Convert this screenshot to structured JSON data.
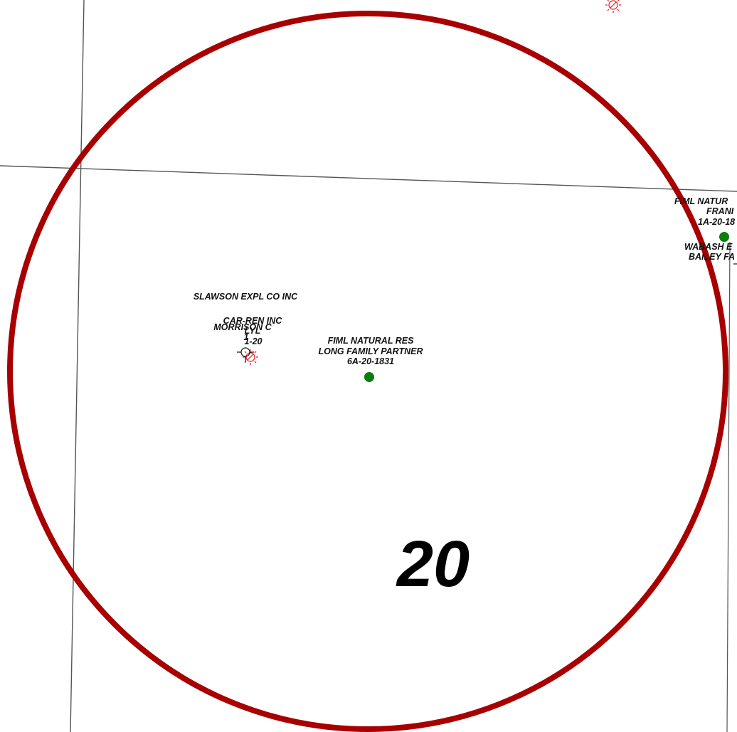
{
  "map": {
    "section_number": "20",
    "colors": {
      "buffer_circle": "#a80000",
      "section_lines": "#555555",
      "producing_well": "#0a7d0a",
      "plugged_well": "#e8141e",
      "well_outline": "#111111",
      "label_text": "#111111"
    },
    "wells": [
      {
        "status_icon": "producing-well-icon",
        "lines": [
          "FIML NATURAL RES",
          "LONG FAMILY PARTNER",
          "6A-20-1831"
        ]
      },
      {
        "status_icon": "plugged-well-icon",
        "lines": [
          "SLAWSON EXPL CO INC",
          "MORRISON  C",
          "1-20"
        ]
      },
      {
        "status_icon": "dry-hole-icon",
        "lines": [
          "CAR-REN INC",
          "LYL",
          "1"
        ]
      },
      {
        "status_icon": "producing-well-icon",
        "lines": [
          "FIML NATUR",
          "FRANI",
          "1A-20-18"
        ]
      },
      {
        "status_icon": "plugged-well-icon",
        "lines": [
          "WABASH E",
          "BAILEY FA"
        ]
      },
      {
        "status_icon": "plugged-well-icon",
        "lines": []
      }
    ]
  }
}
